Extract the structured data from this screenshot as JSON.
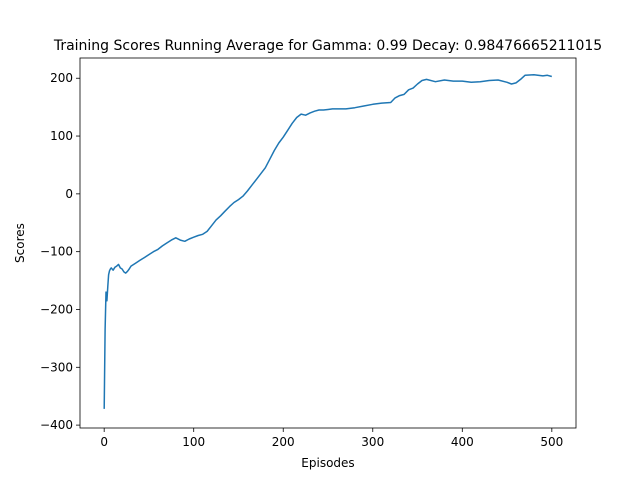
{
  "chart_data": {
    "type": "line",
    "title": "Training Scores Running Average for Gamma: 0.99 Decay: 0.98476665211015",
    "xlabel": "Episodes",
    "ylabel": "Scores",
    "xlim": [
      -27,
      527
    ],
    "ylim": [
      -405,
      235
    ],
    "xticks": [
      0,
      100,
      200,
      300,
      400,
      500
    ],
    "yticks": [
      -400,
      -300,
      -200,
      -100,
      0,
      100,
      200
    ],
    "xtick_labels": [
      "0",
      "100",
      "200",
      "300",
      "400",
      "500"
    ],
    "ytick_labels": [
      "−400",
      "−300",
      "−200",
      "−100",
      "0",
      "100",
      "200"
    ],
    "grid": false,
    "series": [
      {
        "color": "#1f77b4",
        "x": [
          0,
          1,
          2,
          3,
          4,
          5,
          6,
          7,
          8,
          10,
          12,
          14,
          16,
          18,
          20,
          22,
          24,
          26,
          28,
          30,
          35,
          40,
          45,
          50,
          55,
          60,
          65,
          70,
          75,
          80,
          85,
          90,
          95,
          100,
          105,
          110,
          115,
          120,
          125,
          130,
          135,
          140,
          145,
          150,
          155,
          160,
          165,
          170,
          175,
          180,
          185,
          190,
          195,
          200,
          205,
          210,
          215,
          220,
          225,
          230,
          235,
          240,
          245,
          250,
          255,
          260,
          270,
          280,
          290,
          300,
          310,
          320,
          325,
          330,
          335,
          340,
          345,
          350,
          355,
          360,
          370,
          380,
          390,
          400,
          410,
          420,
          430,
          440,
          450,
          455,
          460,
          465,
          470,
          480,
          490,
          495,
          500
        ],
        "y": [
          -372,
          -235,
          -170,
          -185,
          -160,
          -140,
          -133,
          -130,
          -128,
          -132,
          -127,
          -125,
          -122,
          -128,
          -130,
          -135,
          -137,
          -134,
          -130,
          -125,
          -120,
          -115,
          -110,
          -105,
          -100,
          -96,
          -90,
          -85,
          -80,
          -76,
          -80,
          -82,
          -78,
          -75,
          -72,
          -70,
          -65,
          -55,
          -45,
          -38,
          -30,
          -22,
          -15,
          -10,
          -4,
          5,
          15,
          25,
          35,
          45,
          60,
          75,
          88,
          98,
          110,
          122,
          132,
          138,
          136,
          140,
          143,
          145,
          145,
          146,
          147,
          147,
          147,
          149,
          152,
          155,
          157,
          158,
          166,
          170,
          172,
          180,
          183,
          190,
          196,
          198,
          194,
          197,
          195,
          195,
          193,
          194,
          196,
          197,
          193,
          190,
          192,
          198,
          205,
          206,
          204,
          205,
          203
        ]
      }
    ]
  }
}
